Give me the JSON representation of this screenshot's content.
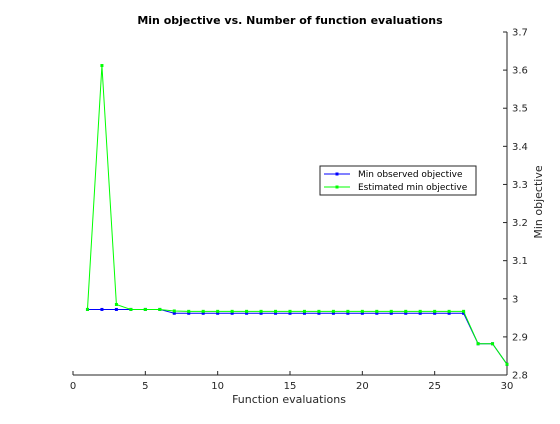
{
  "chart_data": {
    "type": "line",
    "title": "Min objective vs. Number of function evaluations",
    "xlabel": "Function evaluations",
    "ylabel": "Min objective",
    "xlim": [
      0,
      30
    ],
    "ylim": [
      2.8,
      3.7
    ],
    "x_ticks": [
      0,
      5,
      10,
      15,
      20,
      25,
      30
    ],
    "y_ticks": [
      2.8,
      2.9,
      3,
      3.1,
      3.2,
      3.3,
      3.4,
      3.5,
      3.6,
      3.7
    ],
    "y_axis_side": "right",
    "grid": false,
    "legend_position": "right-center",
    "x": [
      1,
      2,
      3,
      4,
      5,
      6,
      7,
      8,
      9,
      10,
      11,
      12,
      13,
      14,
      15,
      16,
      17,
      18,
      19,
      20,
      21,
      22,
      23,
      24,
      25,
      26,
      27,
      28,
      29,
      30
    ],
    "series": [
      {
        "name": "Min observed objective",
        "color": "#0000ff",
        "marker": "square",
        "values": [
          2.972,
          2.972,
          2.972,
          2.972,
          2.972,
          2.972,
          2.962,
          2.962,
          2.962,
          2.962,
          2.962,
          2.962,
          2.962,
          2.962,
          2.962,
          2.962,
          2.962,
          2.962,
          2.962,
          2.962,
          2.962,
          2.962,
          2.962,
          2.962,
          2.962,
          2.962,
          2.962,
          2.882,
          2.882,
          2.828
        ]
      },
      {
        "name": "Estimated min objective",
        "color": "#00ff00",
        "marker": "square",
        "values": [
          2.972,
          3.612,
          2.985,
          2.972,
          2.972,
          2.972,
          2.968,
          2.967,
          2.967,
          2.967,
          2.967,
          2.967,
          2.967,
          2.967,
          2.967,
          2.967,
          2.967,
          2.967,
          2.967,
          2.967,
          2.967,
          2.967,
          2.967,
          2.967,
          2.967,
          2.967,
          2.967,
          2.882,
          2.882,
          2.828
        ]
      }
    ]
  }
}
